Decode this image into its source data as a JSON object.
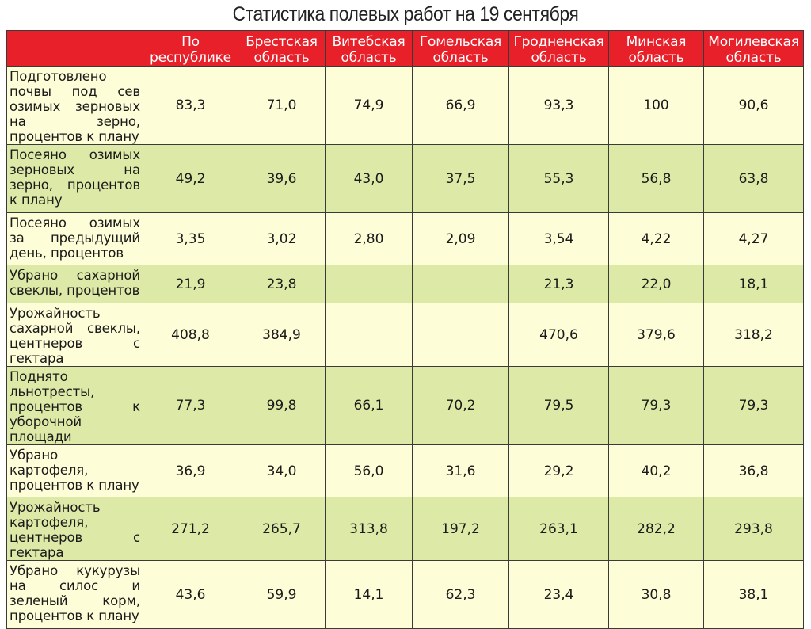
{
  "title": "Статистика полевых работ на 19 сентября",
  "columns": [
    "По республике",
    "Брестская область",
    "Витебская область",
    "Гомельская область",
    "Гродненская область",
    "Минская область",
    "Могилевская область"
  ],
  "rows": [
    {
      "label": "Подготовлено почвы под сев озимых зерновых на зерно, процентов к плану",
      "values": [
        "83,3",
        "71,0",
        "74,9",
        "66,9",
        "93,3",
        "100",
        "90,6"
      ]
    },
    {
      "label": "Посеяно озимых зерновых на зерно, процентов к плану",
      "values": [
        "49,2",
        "39,6",
        "43,0",
        "37,5",
        "55,3",
        "56,8",
        "63,8"
      ]
    },
    {
      "label": "Посеяно озимых за предыдущий день, процентов",
      "values": [
        "3,35",
        "3,02",
        "2,80",
        "2,09",
        "3,54",
        "4,22",
        "4,27"
      ]
    },
    {
      "label": "Убрано сахарной свеклы, процентов",
      "values": [
        "21,9",
        "23,8",
        "",
        "",
        "21,3",
        "22,0",
        "18,1"
      ]
    },
    {
      "label": "Урожайность сахарной свеклы, центнеров с гектара",
      "values": [
        "408,8",
        "384,9",
        "",
        "",
        "470,6",
        "379,6",
        "318,2"
      ]
    },
    {
      "label": "Поднято льнотресты, процентов к уборочной площади",
      "values": [
        "77,3",
        "99,8",
        "66,1",
        "70,2",
        "79,5",
        "79,3",
        "79,3"
      ]
    },
    {
      "label": "Убрано картофеля, процентов к плану",
      "values": [
        "36,9",
        "34,0",
        "56,0",
        "31,6",
        "29,2",
        "40,2",
        "36,8"
      ]
    },
    {
      "label": "Урожайность картофеля, центнеров с гектара",
      "values": [
        "271,2",
        "265,7",
        "313,8",
        "197,2",
        "263,1",
        "282,2",
        "293,8"
      ]
    },
    {
      "label": "Убрано кукурузы на силос и зеленый корм, процентов к плану",
      "values": [
        "43,6",
        "59,9",
        "14,1",
        "62,3",
        "23,4",
        "30,8",
        "38,1"
      ]
    }
  ],
  "colors": {
    "header_red": "#e8202a",
    "row_light": "#fdfdd8",
    "row_green": "#dde9a7"
  }
}
